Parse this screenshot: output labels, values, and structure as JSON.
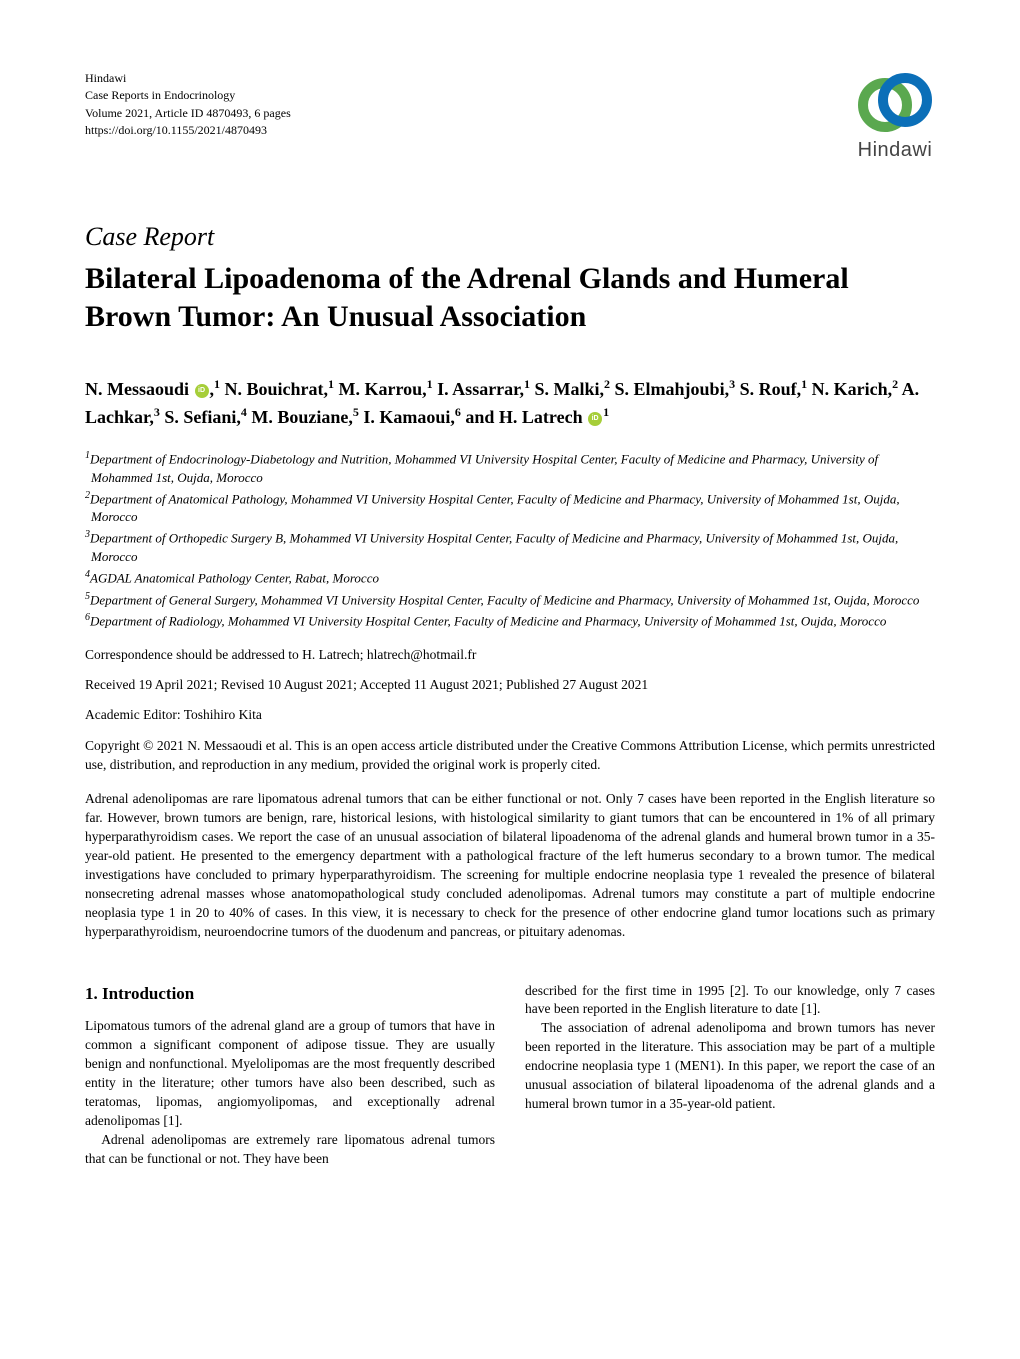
{
  "journal": {
    "publisher": "Hindawi",
    "name": "Case Reports in Endocrinology",
    "volume_line": "Volume 2021, Article ID 4870493, 6 pages",
    "doi": "https://doi.org/10.1155/2021/4870493"
  },
  "logo": {
    "text": "Hindawi",
    "ring1_color": "#5aa84f",
    "ring2_color": "#0b6fb8"
  },
  "article": {
    "type": "Case Report",
    "title": "Bilateral Lipoadenoma of the Adrenal Glands and Humeral Brown Tumor: An Unusual Association"
  },
  "authors_html": "N. Messaoudi <span class='orcid'></span>,<sup>1</sup> N. Bouichrat,<sup>1</sup> M. Karrou,<sup>1</sup> I. Assarrar,<sup>1</sup> S. Malki,<sup>2</sup> S. Elmahjoubi,<sup>3</sup> S. Rouf,<sup>1</sup> N. Karich,<sup>2</sup> A. Lachkar,<sup>3</sup> S. Sefiani,<sup>4</sup> M. Bouziane,<sup>5</sup> I. Kamaoui,<sup>6</sup> and H. Latrech <span class='orcid'></span><sup>1</sup>",
  "affiliations": [
    "<sup>1</sup>Department of Endocrinology-Diabetology and Nutrition, Mohammed VI University Hospital Center, Faculty of Medicine and Pharmacy, University of Mohammed 1st, Oujda, Morocco",
    "<sup>2</sup>Department of Anatomical Pathology, Mohammed VI University Hospital Center, Faculty of Medicine and Pharmacy, University of Mohammed 1st, Oujda, Morocco",
    "<sup>3</sup>Department of Orthopedic Surgery B, Mohammed VI University Hospital Center, Faculty of Medicine and Pharmacy, University of Mohammed 1st, Oujda, Morocco",
    "<sup>4</sup>AGDAL Anatomical Pathology Center, Rabat, Morocco",
    "<sup>5</sup>Department of General Surgery, Mohammed VI University Hospital Center, Faculty of Medicine and Pharmacy, University of Mohammed 1st, Oujda, Morocco",
    "<sup>6</sup>Department of Radiology, Mohammed VI University Hospital Center, Faculty of Medicine and Pharmacy, University of Mohammed 1st, Oujda, Morocco"
  ],
  "correspondence": "Correspondence should be addressed to H. Latrech; hlatrech@hotmail.fr",
  "dates": "Received 19 April 2021; Revised 10 August 2021; Accepted 11 August 2021; Published 27 August 2021",
  "editor": "Academic Editor: Toshihiro Kita",
  "copyright": "Copyright © 2021 N. Messaoudi et al. This is an open access article distributed under the Creative Commons Attribution License, which permits unrestricted use, distribution, and reproduction in any medium, provided the original work is properly cited.",
  "abstract": "Adrenal adenolipomas are rare lipomatous adrenal tumors that can be either functional or not. Only 7 cases have been reported in the English literature so far. However, brown tumors are benign, rare, historical lesions, with histological similarity to giant tumors that can be encountered in 1% of all primary hyperparathyroidism cases. We report the case of an unusual association of bilateral lipoadenoma of the adrenal glands and humeral brown tumor in a 35-year-old patient. He presented to the emergency department with a pathological fracture of the left humerus secondary to a brown tumor. The medical investigations have concluded to primary hyperparathyroidism. The screening for multiple endocrine neoplasia type 1 revealed the presence of bilateral nonsecreting adrenal masses whose anatomopathological study concluded adenolipomas. Adrenal tumors may constitute a part of multiple endocrine neoplasia type 1 in 20 to 40% of cases. In this view, it is necessary to check for the presence of other endocrine gland tumor locations such as primary hyperparathyroidism, neuroendocrine tumors of the duodenum and pancreas, or pituitary adenomas.",
  "section1": {
    "heading": "1. Introduction",
    "left_paras": [
      "Lipomatous tumors of the adrenal gland are a group of tumors that have in common a significant component of adipose tissue. They are usually benign and nonfunctional. Myelolipomas are the most frequently described entity in the literature; other tumors have also been described, such as teratomas, lipomas, angiomyolipomas, and exceptionally adrenal adenolipomas [1].",
      "Adrenal adenolipomas are extremely rare lipomatous adrenal tumors that can be functional or not. They have been"
    ],
    "right_paras": [
      "described for the first time in 1995 [2]. To our knowledge, only 7 cases have been reported in the English literature to date [1].",
      "The association of adrenal adenolipoma and brown tumors has never been reported in the literature. This association may be part of a multiple endocrine neoplasia type 1 (MEN1). In this paper, we report the case of an unusual association of bilateral lipoadenoma of the adrenal glands and a humeral brown tumor in a 35-year-old patient."
    ]
  }
}
